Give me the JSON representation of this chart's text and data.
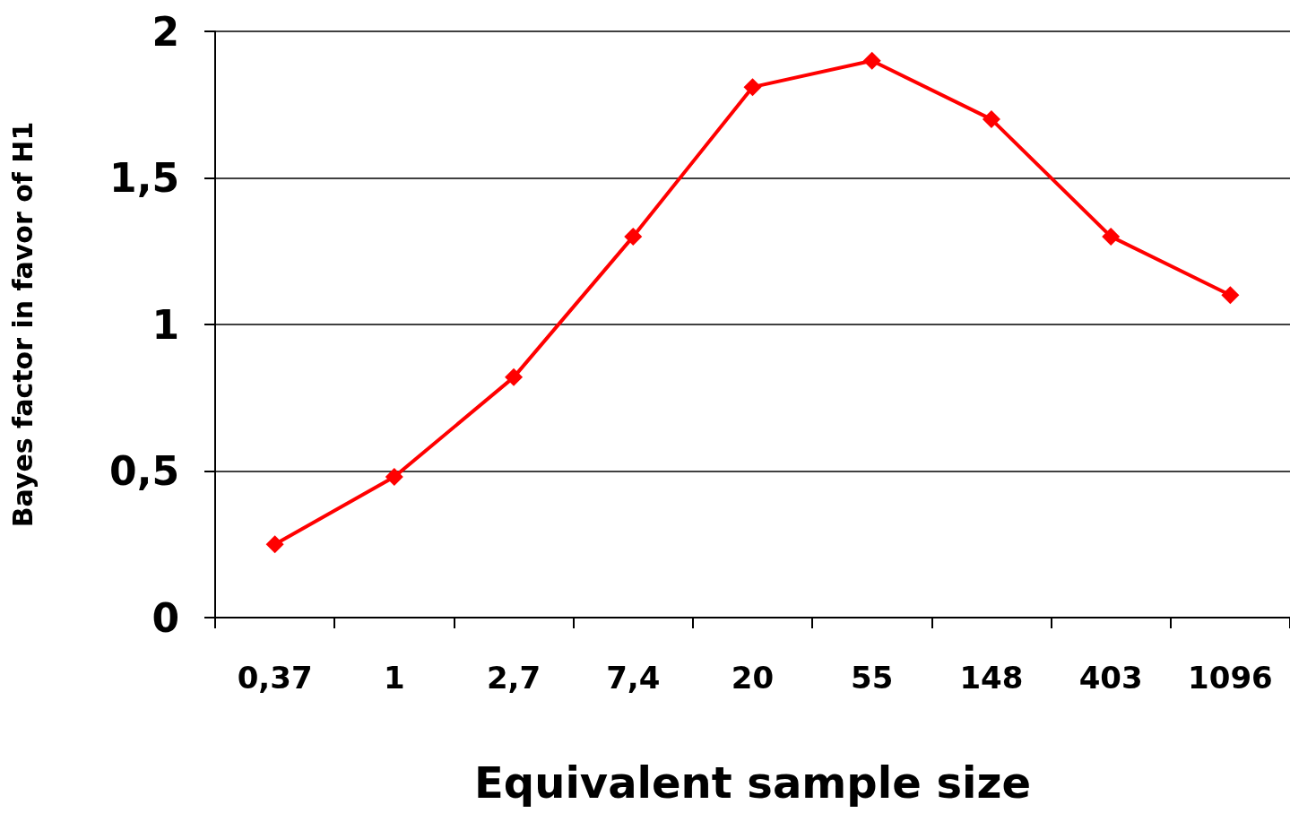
{
  "chart_data": {
    "type": "line",
    "xlabel": "Equivalent sample size",
    "ylabel": "Bayes factor in favor of H1",
    "categories": [
      "0,37",
      "1",
      "2,7",
      "7,4",
      "20",
      "55",
      "148",
      "403",
      "1096"
    ],
    "series": [
      {
        "color": "#ff0000",
        "values": [
          0.25,
          0.48,
          0.82,
          1.3,
          1.81,
          1.9,
          1.7,
          1.3,
          1.1
        ]
      }
    ],
    "ylim": [
      0,
      2
    ],
    "yticks": [
      0,
      {
        "value": 0.5,
        "label": "0,5"
      },
      1,
      {
        "value": 1.5,
        "label": "1,5"
      },
      2
    ],
    "grid": "y",
    "marker": "diamond",
    "line_style": "solid"
  }
}
